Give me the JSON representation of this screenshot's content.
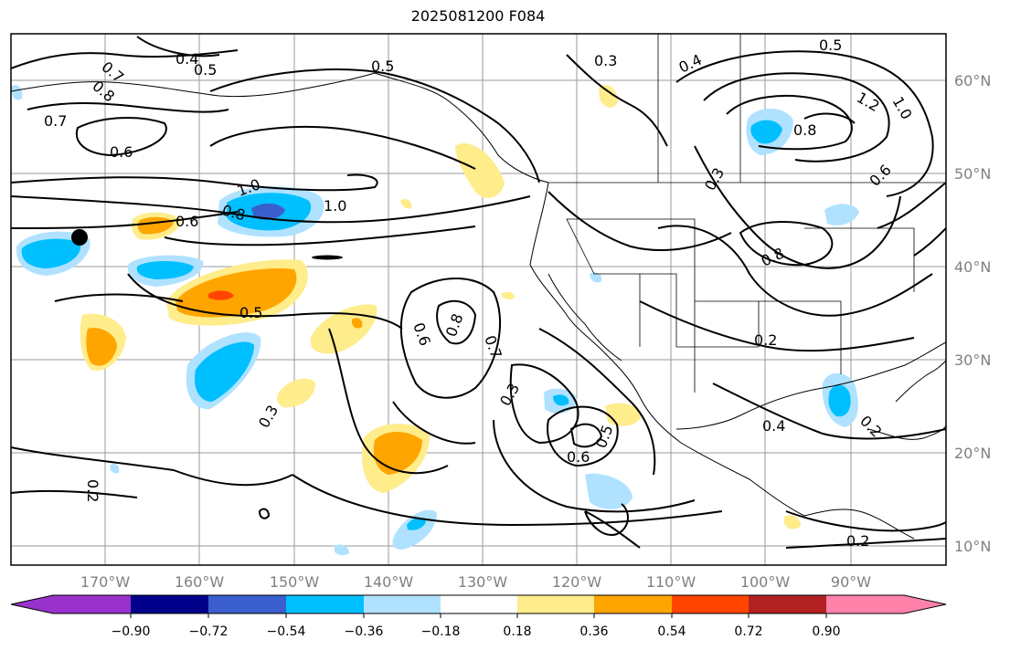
{
  "title": "2025081200 F084",
  "map": {
    "lon_labels": [
      "170°W",
      "160°W",
      "150°W",
      "140°W",
      "130°W",
      "120°W",
      "110°W",
      "100°W",
      "90°W"
    ],
    "lat_labels": [
      "10°N",
      "20°N",
      "30°N",
      "40°N",
      "50°N",
      "60°N"
    ],
    "contour_labels": [
      "0.4",
      "0.5",
      "0.7",
      "0.8",
      "0.7",
      "0.6",
      "0.5",
      "0.3",
      "0.4",
      "0.5",
      "1.2",
      "1.0",
      "0.8",
      "0.3",
      "0.6",
      "1.0",
      "1.0",
      "0.8",
      "0.6",
      "0.5",
      "0.6",
      "0.8",
      "0.7",
      "0.8",
      "0.3",
      "0.5",
      "0.6",
      "0.3",
      "0.2",
      "0.2",
      "0.4",
      "0.2",
      "0.2"
    ],
    "colors": {
      "neg_090": "#9932CC",
      "neg_072": "#00008B",
      "neg_054": "#3A5FCD",
      "neg_036": "#00BFFF",
      "neg_018": "#B0E2FF",
      "zero": "#FFFFFF",
      "pos_018": "#FFEC8B",
      "pos_036": "#FFA500",
      "pos_054": "#FF4500",
      "pos_072": "#B22222",
      "pos_090": "#FF82AB"
    },
    "marker": "black-dot"
  },
  "colorbar": {
    "ticks": [
      "−0.90",
      "−0.72",
      "−0.54",
      "−0.36",
      "−0.18",
      "0.18",
      "0.36",
      "0.54",
      "0.72",
      "0.90"
    ],
    "colors": [
      "#9932CC",
      "#00008B",
      "#3A5FCD",
      "#00BFFF",
      "#B0E2FF",
      "#FFFFFF",
      "#FFEC8B",
      "#FFA500",
      "#FF4500",
      "#B22222",
      "#FF82AB"
    ]
  }
}
